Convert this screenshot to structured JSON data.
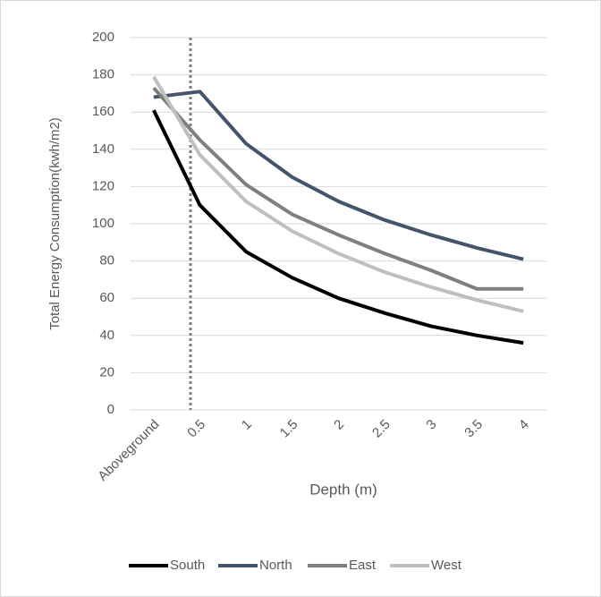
{
  "chart_data": {
    "type": "line",
    "x_label": "Depth (m)",
    "y_label": "Total Energy Consumption(kwh/m2)",
    "categories": [
      "Aboveground",
      "0.5",
      "1",
      "1.5",
      "2",
      "2.5",
      "3",
      "3.5",
      "4"
    ],
    "series": [
      {
        "name": "South",
        "color": "#000000",
        "values": [
          161,
          110,
          85,
          71,
          60,
          52,
          45,
          40,
          36
        ]
      },
      {
        "name": "North",
        "color": "#44546a",
        "values": [
          168,
          171,
          143,
          125,
          112,
          102,
          94,
          87,
          81
        ]
      },
      {
        "name": "East",
        "color": "#7f7f7f",
        "values": [
          173,
          145,
          121,
          105,
          94,
          84,
          75,
          65,
          65
        ]
      },
      {
        "name": "West",
        "color": "#bfbfbf",
        "values": [
          179,
          137,
          112,
          96,
          84,
          74,
          66,
          59,
          53
        ]
      }
    ],
    "ylim": [
      0,
      200
    ],
    "yticks": [
      0,
      20,
      40,
      60,
      80,
      100,
      120,
      140,
      160,
      180,
      200
    ],
    "grid": true,
    "legend": "bottom"
  }
}
